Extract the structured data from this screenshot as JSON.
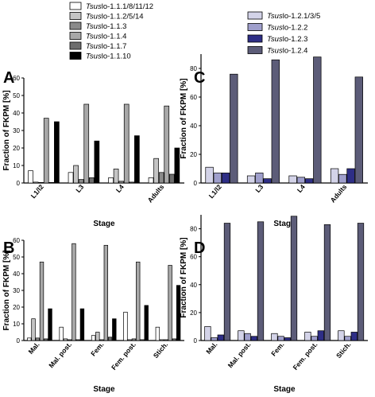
{
  "figure_title": "",
  "legend_left": [
    {
      "id": "tsuslo_1_1_1",
      "prefix": "Tsus",
      "suffix": "lo-1.1.1/8/11/12",
      "color": "#ffffff"
    },
    {
      "id": "tsuslo_1_1_2",
      "prefix": "Tsus",
      "suffix": "lo-1.1.2/5/14",
      "color": "#c4c4c4"
    },
    {
      "id": "tsuslo_1_1_3",
      "prefix": "Tsus",
      "suffix": "lo-1.1.3",
      "color": "#8a8a8a"
    },
    {
      "id": "tsuslo_1_1_4",
      "prefix": "Tsus",
      "suffix": "lo-1.1.4",
      "color": "#a8a8a8"
    },
    {
      "id": "tsuslo_1_1_7",
      "prefix": "Tsus",
      "suffix": "lo-1.1.7",
      "color": "#6e6e6e"
    },
    {
      "id": "tsuslo_1_1_10",
      "prefix": "Tsus",
      "suffix": "lo-1.1.10",
      "color": "#000000"
    }
  ],
  "legend_right": [
    {
      "id": "tsuslo_1_2_1",
      "prefix": "Tsus",
      "suffix": "lo-1.2.1/3/5",
      "color": "#d3d3e8"
    },
    {
      "id": "tsuslo_1_2_2",
      "prefix": "Tsus",
      "suffix": "lo-1.2.2",
      "color": "#9f9fcc"
    },
    {
      "id": "tsuslo_1_2_3",
      "prefix": "Tsus",
      "suffix": "lo-1.2.3",
      "color": "#2e2e86"
    },
    {
      "id": "tsuslo_1_2_4",
      "prefix": "Tsus",
      "suffix": "lo-1.2.4",
      "color": "#5c5c78"
    }
  ],
  "chart_data": [
    {
      "panel": "A",
      "type": "bar",
      "xlabel": "Stage",
      "ylabel": "Fraction of FKPM [%]",
      "ylim": [
        0,
        60
      ],
      "yticks": [
        0,
        10,
        20,
        30,
        40,
        50,
        60
      ],
      "categories": [
        "L1/l2",
        "L3",
        "L4",
        "Adults"
      ],
      "series": [
        {
          "name": "Tsuslo-1.1.1/8/11/12",
          "color": "#ffffff",
          "values": [
            7,
            6,
            3,
            3
          ]
        },
        {
          "name": "Tsuslo-1.1.2/5/14",
          "color": "#c4c4c4",
          "values": [
            0.5,
            10,
            8,
            14
          ]
        },
        {
          "name": "Tsuslo-1.1.3",
          "color": "#8a8a8a",
          "values": [
            0.3,
            2,
            1,
            6
          ]
        },
        {
          "name": "Tsuslo-1.1.4",
          "color": "#a8a8a8",
          "values": [
            37,
            45,
            45,
            44
          ]
        },
        {
          "name": "Tsuslo-1.1.7",
          "color": "#6e6e6e",
          "values": [
            0.3,
            3,
            0.5,
            5
          ]
        },
        {
          "name": "Tsuslo-1.1.10",
          "color": "#000000",
          "values": [
            35,
            24,
            27,
            20
          ]
        }
      ]
    },
    {
      "panel": "B",
      "type": "bar",
      "xlabel": "Stage",
      "ylabel": "Fraction of FKPM [%]",
      "ylim": [
        0,
        60
      ],
      "yticks": [
        0,
        10,
        20,
        30,
        40,
        50,
        60
      ],
      "categories": [
        "Mal.",
        "Mal. post.",
        "Fem.",
        "Fem. post.",
        "Stich."
      ],
      "series": [
        {
          "name": "Tsuslo-1.1.1/8/11/12",
          "color": "#ffffff",
          "values": [
            1.5,
            8,
            3,
            17,
            8
          ]
        },
        {
          "name": "Tsuslo-1.1.2/5/14",
          "color": "#c4c4c4",
          "values": [
            13,
            1,
            5,
            0.5,
            0.5
          ]
        },
        {
          "name": "Tsuslo-1.1.3",
          "color": "#8a8a8a",
          "values": [
            1.5,
            0.5,
            0.5,
            1,
            0.5
          ]
        },
        {
          "name": "Tsuslo-1.1.4",
          "color": "#a8a8a8",
          "values": [
            47,
            58,
            57,
            47,
            45
          ]
        },
        {
          "name": "Tsuslo-1.1.7",
          "color": "#6e6e6e",
          "values": [
            1,
            0.5,
            2,
            0.5,
            1
          ]
        },
        {
          "name": "Tsuslo-1.1.10",
          "color": "#000000",
          "values": [
            19,
            19,
            13,
            21,
            33
          ]
        }
      ]
    },
    {
      "panel": "C",
      "type": "bar",
      "xlabel": "Stage",
      "ylabel": "Fraction of FKPM [%]",
      "ylim": [
        0,
        90
      ],
      "yticks": [
        0,
        20,
        40,
        60,
        80
      ],
      "categories": [
        "L1/l2",
        "L3",
        "L4",
        "Adults"
      ],
      "series": [
        {
          "name": "Tsuslo-1.2.1/3/5",
          "color": "#d3d3e8",
          "values": [
            11,
            5,
            5,
            10
          ]
        },
        {
          "name": "Tsuslo-1.2.2",
          "color": "#9f9fcc",
          "values": [
            7,
            7,
            4,
            6
          ]
        },
        {
          "name": "Tsuslo-1.2.3",
          "color": "#2e2e86",
          "values": [
            7,
            3,
            3,
            10
          ]
        },
        {
          "name": "Tsuslo-1.2.4",
          "color": "#5c5c78",
          "values": [
            76,
            86,
            88,
            74
          ]
        }
      ]
    },
    {
      "panel": "D",
      "type": "bar",
      "xlabel": "Stage",
      "ylabel": "Fraction of FKPM [%]",
      "ylim": [
        0,
        90
      ],
      "yticks": [
        0,
        20,
        40,
        60,
        80
      ],
      "categories": [
        "Mal.",
        "Mal. post.",
        "Fem.",
        "Fem. post.",
        "Stich."
      ],
      "series": [
        {
          "name": "Tsuslo-1.2.1/3/5",
          "color": "#d3d3e8",
          "values": [
            10,
            7,
            5,
            6,
            7
          ]
        },
        {
          "name": "Tsuslo-1.2.2",
          "color": "#9f9fcc",
          "values": [
            2,
            5,
            3,
            3,
            3
          ]
        },
        {
          "name": "Tsuslo-1.2.3",
          "color": "#2e2e86",
          "values": [
            4,
            3,
            2,
            7,
            6
          ]
        },
        {
          "name": "Tsuslo-1.2.4",
          "color": "#5c5c78",
          "values": [
            84,
            85,
            89,
            83,
            84
          ]
        }
      ]
    }
  ]
}
